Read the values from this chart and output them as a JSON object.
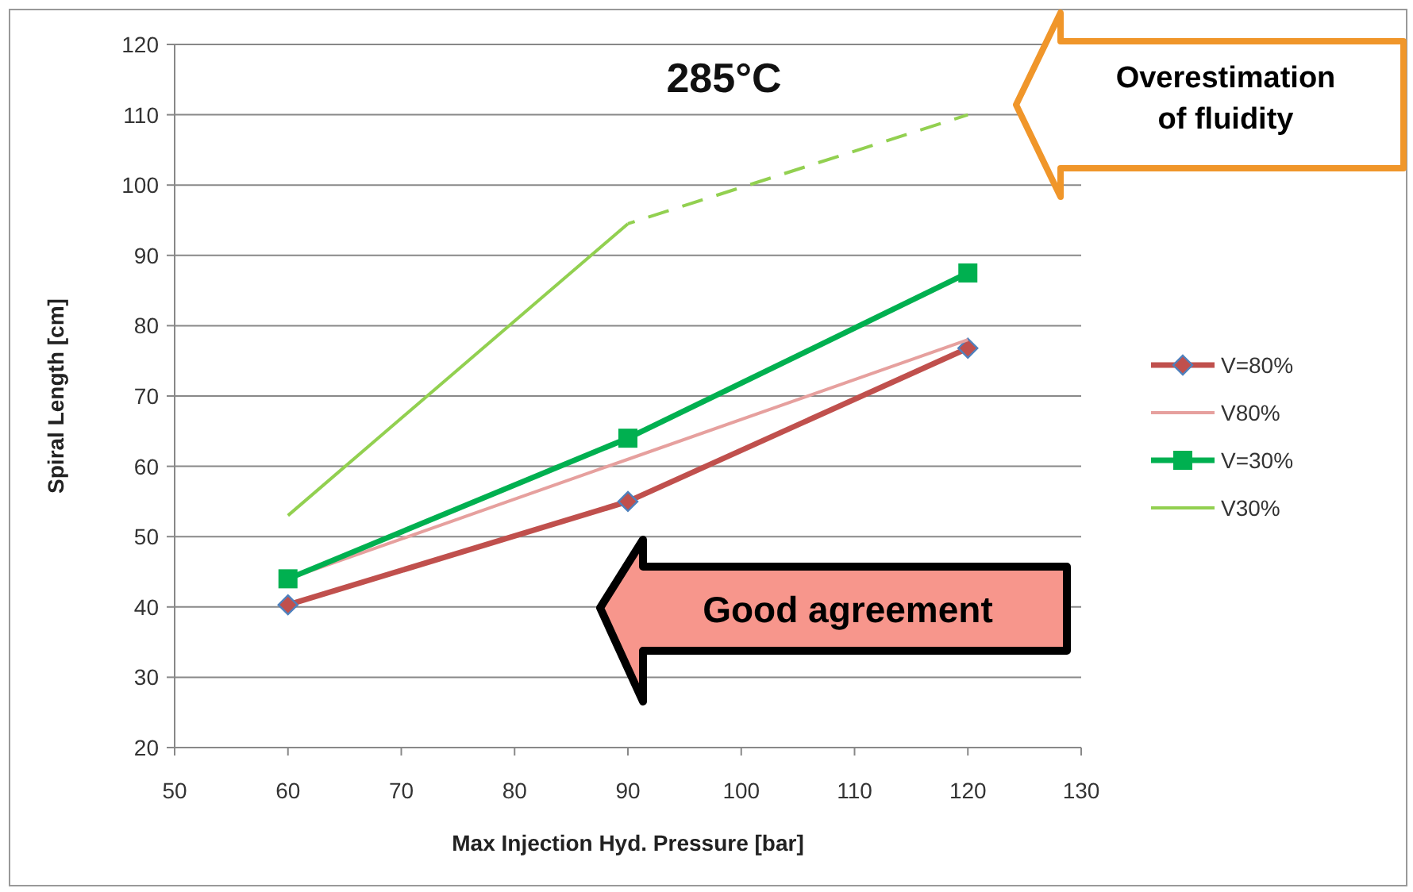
{
  "chart_data": {
    "type": "line",
    "title": "285°C",
    "xlabel": "Max Injection Hyd. Pressure [bar]",
    "ylabel": "Spiral Length [cm]",
    "xlim": [
      50,
      130
    ],
    "xticks": [
      50,
      60,
      70,
      80,
      90,
      100,
      110,
      120,
      130
    ],
    "ylim": [
      20,
      120
    ],
    "yticks": [
      20,
      30,
      40,
      50,
      60,
      70,
      80,
      90,
      100,
      110,
      120
    ],
    "grid": "y",
    "legend": "right",
    "annotations": [
      "Good agreement",
      "Overestimation of fluidity"
    ],
    "series": [
      {
        "name": "V=80%",
        "color": "#c0504d",
        "x": [
          60,
          90,
          120
        ],
        "values": [
          40.3,
          55,
          76.8
        ],
        "marker": "diamond",
        "line_style": "solid"
      },
      {
        "name": "V80%",
        "color": "#e6a09e",
        "x": [
          60,
          90,
          120
        ],
        "values": [
          44,
          61,
          78
        ],
        "marker": "none",
        "line_style": "solid"
      },
      {
        "name": "V=30%",
        "color": "#00b050",
        "x": [
          60,
          90,
          120
        ],
        "values": [
          44,
          64,
          87.5
        ],
        "marker": "square",
        "line_style": "solid"
      },
      {
        "name": "V30%",
        "color": "#92d050",
        "x": [
          60,
          90
        ],
        "values": [
          53,
          94.5
        ],
        "marker": "none",
        "line_style": "solid"
      },
      {
        "color": "#92d050",
        "x": [
          90,
          120
        ],
        "values": [
          94.5,
          110
        ],
        "marker": "none",
        "line_style": "dashed"
      }
    ]
  }
}
